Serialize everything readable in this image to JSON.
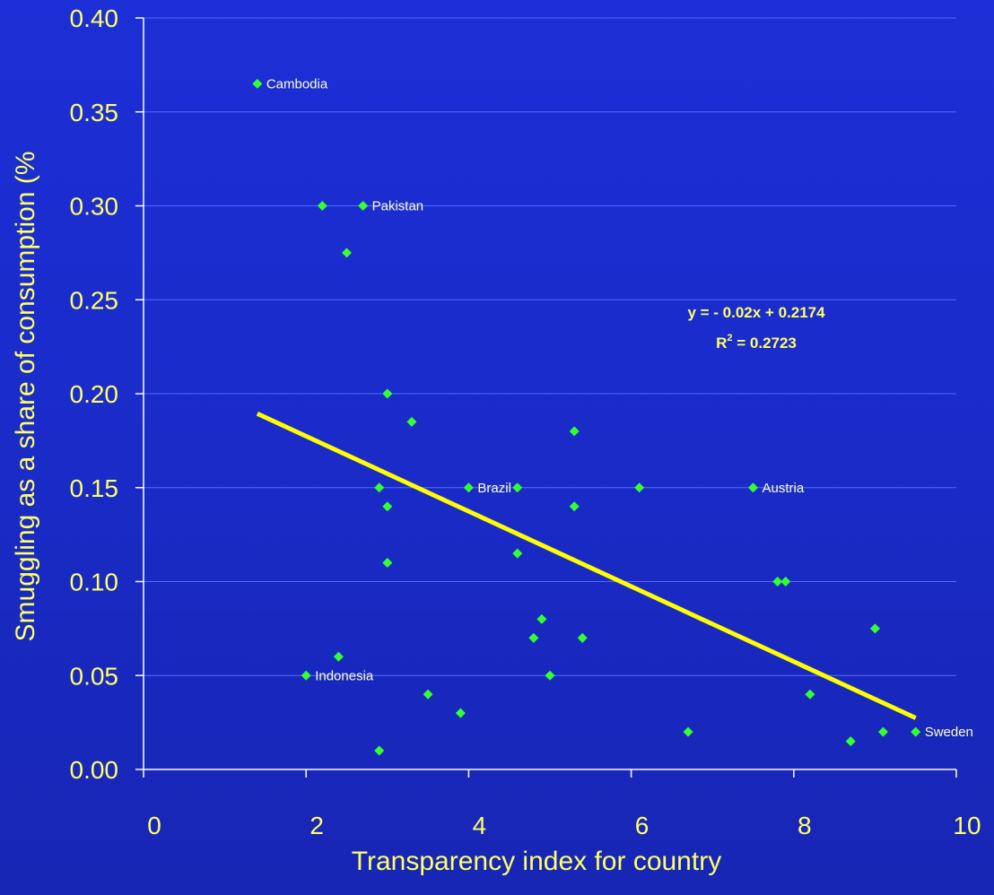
{
  "colors": {
    "background": "#1a2bd0",
    "text": "#ffff66",
    "points": "#33ff33",
    "trendline": "#ffff00",
    "gridlines": "#4f6cff",
    "axis": "#ffffff",
    "label_text": "#ffffcc"
  },
  "chart_data": {
    "type": "scatter",
    "xlabel": "Transparency index for country",
    "ylabel": "Smuggling as a share of consumption (%",
    "xlim": [
      0,
      10
    ],
    "ylim": [
      0,
      0.4
    ],
    "x_ticks": [
      "0",
      "2",
      "4",
      "6",
      "8",
      "10"
    ],
    "x_tick_values": [
      0,
      2,
      4,
      6,
      8,
      10
    ],
    "y_ticks": [
      "0.00",
      "0.05",
      "0.10",
      "0.15",
      "0.20",
      "0.25",
      "0.30",
      "0.35",
      "0.40"
    ],
    "y_tick_values": [
      0,
      0.05,
      0.1,
      0.15,
      0.2,
      0.25,
      0.3,
      0.35,
      0.4
    ],
    "grid": "horizontal",
    "points": [
      {
        "x": 1.4,
        "y": 0.365,
        "label": "Cambodia"
      },
      {
        "x": 2.2,
        "y": 0.3,
        "label": ""
      },
      {
        "x": 2.7,
        "y": 0.3,
        "label": "Pakistan"
      },
      {
        "x": 2.5,
        "y": 0.275,
        "label": ""
      },
      {
        "x": 3.0,
        "y": 0.2,
        "label": ""
      },
      {
        "x": 3.3,
        "y": 0.185,
        "label": ""
      },
      {
        "x": 2.9,
        "y": 0.15,
        "label": ""
      },
      {
        "x": 3.0,
        "y": 0.14,
        "label": ""
      },
      {
        "x": 3.0,
        "y": 0.11,
        "label": ""
      },
      {
        "x": 4.0,
        "y": 0.15,
        "label": "Brazil"
      },
      {
        "x": 4.6,
        "y": 0.15,
        "label": ""
      },
      {
        "x": 4.6,
        "y": 0.115,
        "label": ""
      },
      {
        "x": 5.3,
        "y": 0.18,
        "label": ""
      },
      {
        "x": 5.3,
        "y": 0.14,
        "label": ""
      },
      {
        "x": 6.1,
        "y": 0.15,
        "label": ""
      },
      {
        "x": 7.5,
        "y": 0.15,
        "label": "Austria"
      },
      {
        "x": 4.9,
        "y": 0.08,
        "label": ""
      },
      {
        "x": 4.8,
        "y": 0.07,
        "label": ""
      },
      {
        "x": 5.4,
        "y": 0.07,
        "label": ""
      },
      {
        "x": 5.0,
        "y": 0.05,
        "label": ""
      },
      {
        "x": 2.4,
        "y": 0.06,
        "label": ""
      },
      {
        "x": 2.0,
        "y": 0.05,
        "label": "Indonesia"
      },
      {
        "x": 3.5,
        "y": 0.04,
        "label": ""
      },
      {
        "x": 3.9,
        "y": 0.03,
        "label": ""
      },
      {
        "x": 2.9,
        "y": 0.01,
        "label": ""
      },
      {
        "x": 6.7,
        "y": 0.02,
        "label": ""
      },
      {
        "x": 7.8,
        "y": 0.1,
        "label": ""
      },
      {
        "x": 7.9,
        "y": 0.1,
        "label": ""
      },
      {
        "x": 9.0,
        "y": 0.075,
        "label": ""
      },
      {
        "x": 8.2,
        "y": 0.04,
        "label": ""
      },
      {
        "x": 8.7,
        "y": 0.015,
        "label": ""
      },
      {
        "x": 9.1,
        "y": 0.02,
        "label": ""
      },
      {
        "x": 9.5,
        "y": 0.02,
        "label": "Sweden"
      }
    ],
    "trendline": {
      "slope": -0.02,
      "intercept": 0.2174,
      "x_range": [
        1.4,
        9.5
      ]
    },
    "equation": "y = - 0.02x + 0.2174",
    "r2_label": "R",
    "r2_sup": "2",
    "r2_value": " = 0.2723"
  }
}
